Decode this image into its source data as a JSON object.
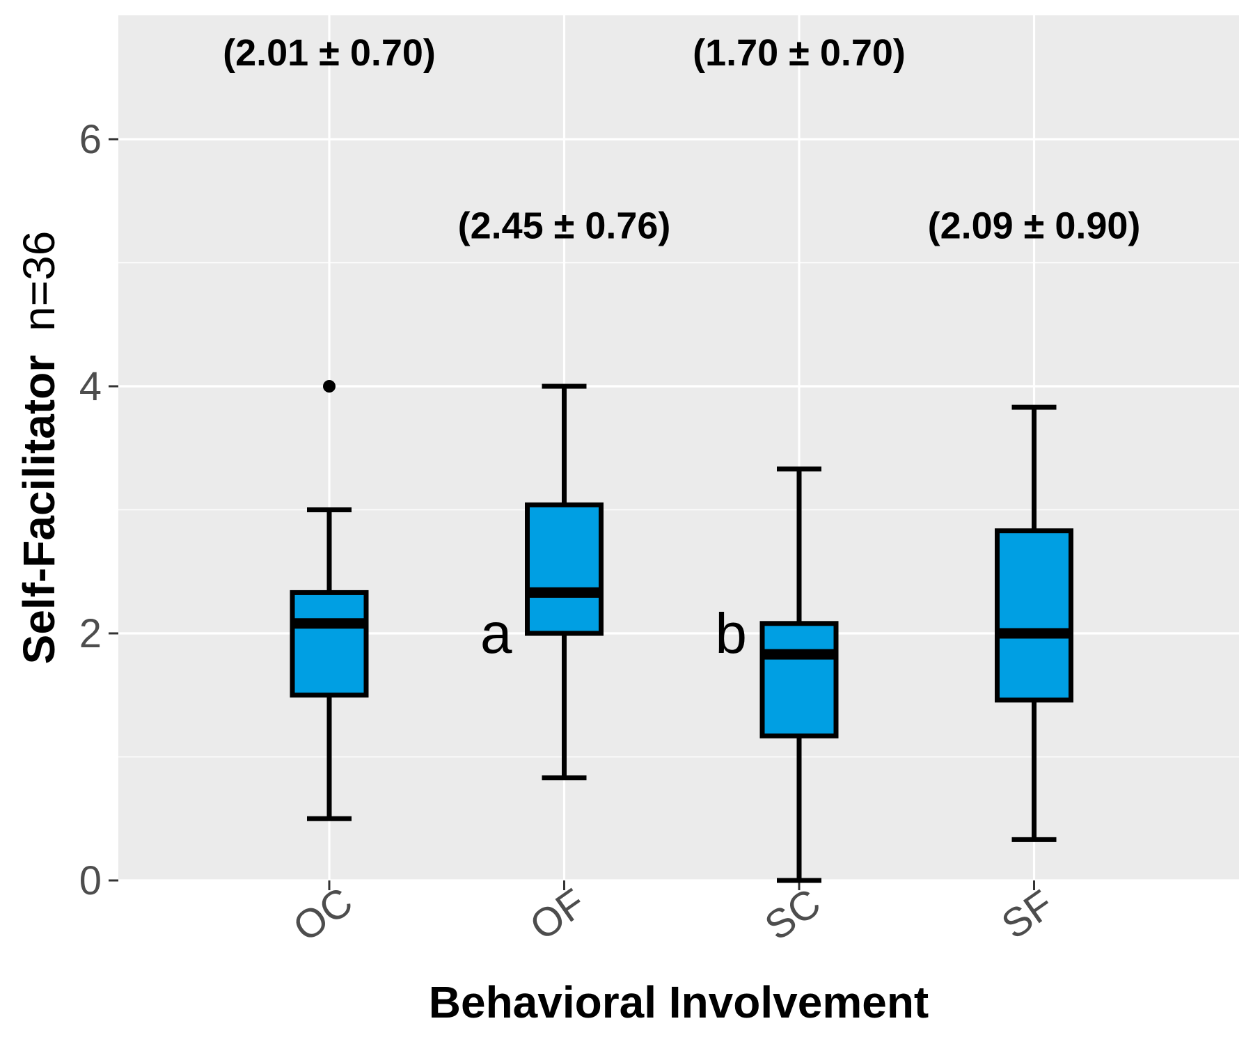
{
  "chart_data": {
    "type": "box",
    "xlabel": "Behavioral Involvement",
    "ylabel_bold": "Self-Facilitator",
    "ylabel_suffix": "n=36",
    "ylim": [
      0,
      7.0
    ],
    "yticks": [
      "0",
      "2",
      "4",
      "6"
    ],
    "ytick_values": [
      0,
      2,
      4,
      6
    ],
    "grid": true,
    "colors": {
      "box_fill": "#009fe3",
      "panel": "#ebebeb",
      "grid": "#ffffff",
      "stroke": "#000000"
    },
    "categories": [
      "OC",
      "OF",
      "SC",
      "SF"
    ],
    "boxes": [
      {
        "category": "OC",
        "min": 0.5,
        "q1": 1.5,
        "median": 2.08,
        "q3": 2.33,
        "max": 3.0,
        "outliers": [
          4.0
        ]
      },
      {
        "category": "OF",
        "min": 0.83,
        "q1": 2.0,
        "median": 2.33,
        "q3": 3.04,
        "max": 4.0,
        "outliers": []
      },
      {
        "category": "SC",
        "min": 0.0,
        "q1": 1.17,
        "median": 1.83,
        "q3": 2.08,
        "max": 3.33,
        "outliers": []
      },
      {
        "category": "SF",
        "min": 0.33,
        "q1": 1.46,
        "median": 2.0,
        "q3": 2.83,
        "max": 3.83,
        "outliers": []
      }
    ],
    "annotations": [
      {
        "category": "OC",
        "text": "(2.01 ± 0.70)",
        "y": 6.7
      },
      {
        "category": "OF",
        "text": "(2.45 ± 0.76)",
        "y": 5.3
      },
      {
        "category": "SC",
        "text": "(1.70 ± 0.70)",
        "y": 6.7
      },
      {
        "category": "SF",
        "text": "(2.09 ± 0.90)",
        "y": 5.3
      }
    ],
    "significance_labels": [
      {
        "category": "OF",
        "text": "a",
        "y": 2.0
      },
      {
        "category": "SC",
        "text": "b",
        "y": 2.0
      }
    ]
  }
}
